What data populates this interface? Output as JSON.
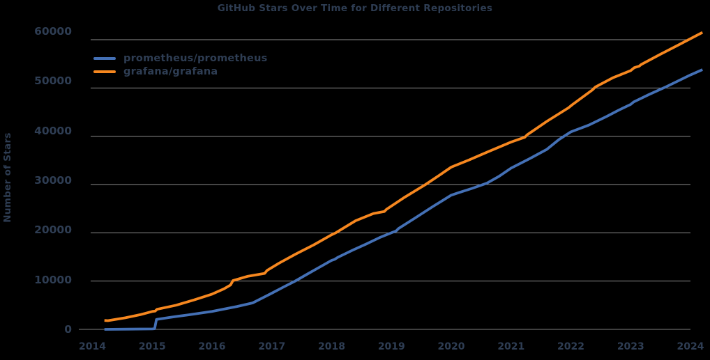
{
  "chart_data": {
    "type": "line",
    "title": "GitHub Stars Over Time for Different Repositories",
    "xlabel": "",
    "ylabel": "Number of Stars",
    "x_ticks": [
      2014,
      2015,
      2016,
      2017,
      2018,
      2019,
      2020,
      2021,
      2022,
      2023,
      2024
    ],
    "y_ticks": [
      0,
      10000,
      20000,
      30000,
      40000,
      50000,
      60000
    ],
    "xlim": [
      2013.77,
      2024.33
    ],
    "ylim": [
      0,
      62500
    ],
    "grid": true,
    "legend_position": "upper-left",
    "background_color": "#000000",
    "text_color": "#2E3D53",
    "grid_color": "#8C8C8C",
    "zero_line_color": "#808080",
    "series": [
      {
        "name": "prometheus/prometheus",
        "color": "#4470B5",
        "points": [
          [
            2014.2,
            0
          ],
          [
            2014.6,
            40
          ],
          [
            2015.0,
            90
          ],
          [
            2015.04,
            130
          ],
          [
            2015.07,
            2050
          ],
          [
            2015.3,
            2500
          ],
          [
            2015.6,
            3000
          ],
          [
            2016.0,
            3700
          ],
          [
            2016.42,
            4750
          ],
          [
            2016.68,
            5480
          ],
          [
            2017.0,
            7500
          ],
          [
            2017.2,
            8800
          ],
          [
            2017.39,
            10000
          ],
          [
            2017.6,
            11500
          ],
          [
            2017.8,
            12900
          ],
          [
            2018.0,
            14300
          ],
          [
            2018.05,
            14500
          ],
          [
            2018.1,
            14900
          ],
          [
            2018.35,
            16400
          ],
          [
            2018.6,
            17800
          ],
          [
            2018.8,
            19000
          ],
          [
            2019.0,
            20000
          ],
          [
            2019.08,
            20400
          ],
          [
            2019.12,
            20900
          ],
          [
            2019.4,
            23100
          ],
          [
            2019.7,
            25500
          ],
          [
            2020.0,
            27800
          ],
          [
            2020.12,
            28300
          ],
          [
            2020.35,
            29200
          ],
          [
            2020.6,
            30300
          ],
          [
            2020.8,
            31700
          ],
          [
            2021.0,
            33400
          ],
          [
            2021.3,
            35300
          ],
          [
            2021.6,
            37300
          ],
          [
            2021.8,
            39300
          ],
          [
            2022.0,
            40900
          ],
          [
            2022.3,
            42300
          ],
          [
            2022.6,
            44100
          ],
          [
            2022.8,
            45400
          ],
          [
            2023.0,
            46600
          ],
          [
            2023.05,
            47100
          ],
          [
            2023.3,
            48600
          ],
          [
            2023.6,
            50300
          ],
          [
            2024.0,
            52700
          ],
          [
            2024.2,
            53800
          ]
        ]
      },
      {
        "name": "grafana/grafana",
        "color": "#F6871F",
        "points": [
          [
            2014.2,
            1850
          ],
          [
            2014.26,
            1800
          ],
          [
            2014.55,
            2400
          ],
          [
            2014.8,
            3050
          ],
          [
            2015.0,
            3700
          ],
          [
            2015.05,
            3800
          ],
          [
            2015.08,
            4150
          ],
          [
            2015.4,
            5000
          ],
          [
            2015.7,
            6100
          ],
          [
            2016.0,
            7300
          ],
          [
            2016.2,
            8400
          ],
          [
            2016.31,
            9200
          ],
          [
            2016.35,
            10100
          ],
          [
            2016.6,
            11000
          ],
          [
            2016.88,
            11600
          ],
          [
            2016.92,
            12200
          ],
          [
            2017.12,
            13700
          ],
          [
            2017.4,
            15600
          ],
          [
            2017.7,
            17500
          ],
          [
            2018.0,
            19600
          ],
          [
            2018.07,
            20000
          ],
          [
            2018.4,
            22500
          ],
          [
            2018.7,
            24000
          ],
          [
            2018.88,
            24400
          ],
          [
            2018.92,
            24900
          ],
          [
            2019.2,
            27200
          ],
          [
            2019.57,
            30000
          ],
          [
            2019.8,
            31900
          ],
          [
            2020.0,
            33600
          ],
          [
            2020.3,
            35100
          ],
          [
            2020.6,
            36700
          ],
          [
            2021.0,
            38800
          ],
          [
            2021.23,
            39800
          ],
          [
            2021.27,
            40300
          ],
          [
            2021.6,
            43100
          ],
          [
            2021.96,
            45900
          ],
          [
            2022.02,
            46500
          ],
          [
            2022.36,
            49600
          ],
          [
            2022.41,
            50200
          ],
          [
            2022.7,
            52100
          ],
          [
            2023.0,
            53600
          ],
          [
            2023.06,
            54200
          ],
          [
            2023.14,
            54500
          ],
          [
            2023.18,
            54900
          ],
          [
            2023.5,
            57000
          ],
          [
            2023.8,
            58900
          ],
          [
            2024.0,
            60200
          ],
          [
            2024.2,
            61500
          ]
        ]
      }
    ]
  }
}
